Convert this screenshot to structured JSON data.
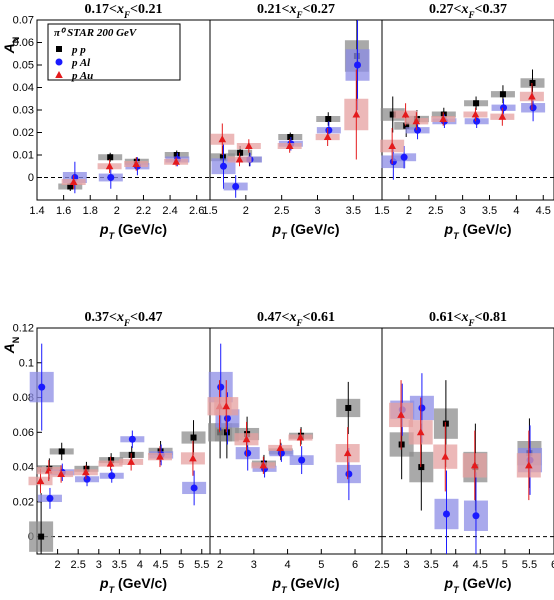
{
  "chart_data": {
    "type": "scatter",
    "figure_label": "π⁰ STAR 200 GeV",
    "ylabel": "A_N",
    "xlabel": "p_T (GeV/c)",
    "legend": [
      "p p",
      "p Al",
      "p Au"
    ],
    "series_colors": {
      "pp": "#000000",
      "pAl": "#1a1aff",
      "pAu": "#e41a1c"
    },
    "box_colors": {
      "pp": "#8c8c8c",
      "pAl": "#8c8ce6",
      "pAu": "#e6a0a0"
    },
    "rows": [
      {
        "ylim": [
          -0.01,
          0.07
        ],
        "yticks": [
          0,
          0.01,
          0.02,
          0.03,
          0.04,
          0.05,
          0.06,
          0.07
        ]
      },
      {
        "ylim": [
          -0.01,
          0.12
        ],
        "yticks": [
          0,
          0.02,
          0.04,
          0.06,
          0.08,
          0.1,
          0.12
        ]
      }
    ],
    "panels": [
      {
        "title": "0.17<x_F<0.21",
        "row": 0,
        "col": 0,
        "xlim": [
          1.4,
          2.7
        ],
        "xticks": [
          1.4,
          1.6,
          1.8,
          2,
          2.2,
          2.4,
          2.6
        ],
        "series": [
          {
            "name": "pp",
            "points": [
              [
                1.65,
                -0.004,
                0.002
              ],
              [
                1.95,
                0.009,
                0.002
              ],
              [
                2.15,
                0.007,
                0.002
              ],
              [
                2.45,
                0.01,
                0.002
              ]
            ]
          },
          {
            "name": "pAl",
            "points": [
              [
                1.68,
                0.0,
                0.007
              ],
              [
                1.95,
                0.0,
                0.005
              ],
              [
                2.15,
                0.005,
                0.004
              ],
              [
                2.45,
                0.008,
                0.003
              ]
            ]
          },
          {
            "name": "pAu",
            "points": [
              [
                1.68,
                -0.002,
                0.003
              ],
              [
                1.95,
                0.005,
                0.003
              ],
              [
                2.15,
                0.006,
                0.003
              ],
              [
                2.45,
                0.007,
                0.002
              ]
            ]
          }
        ]
      },
      {
        "title": "0.21<x_F<0.27",
        "row": 0,
        "col": 1,
        "xlim": [
          1.5,
          3.9
        ],
        "xticks": [
          1.5,
          2,
          2.5,
          3,
          3.5
        ],
        "series": [
          {
            "name": "pp",
            "points": [
              [
                1.68,
                0.009,
                0.005
              ],
              [
                1.92,
                0.011,
                0.003
              ],
              [
                2.05,
                0.008,
                0.003
              ],
              [
                2.62,
                0.018,
                0.002
              ],
              [
                3.15,
                0.026,
                0.003
              ],
              [
                3.55,
                0.054,
                0.02
              ]
            ]
          },
          {
            "name": "pAl",
            "points": [
              [
                1.68,
                0.005,
                0.01
              ],
              [
                1.85,
                -0.004,
                0.005
              ],
              [
                2.05,
                0.008,
                0.003
              ],
              [
                2.62,
                0.015,
                0.003
              ],
              [
                3.15,
                0.021,
                0.004
              ],
              [
                3.55,
                0.05,
                0.02
              ]
            ]
          },
          {
            "name": "pAu",
            "points": [
              [
                1.68,
                0.017,
                0.007
              ],
              [
                1.92,
                0.008,
                0.003
              ],
              [
                2.05,
                0.014,
                0.003
              ],
              [
                2.62,
                0.014,
                0.003
              ],
              [
                3.15,
                0.018,
                0.004
              ],
              [
                3.55,
                0.028,
                0.02
              ]
            ]
          }
        ]
      },
      {
        "title": "0.27<x_F<0.37",
        "row": 0,
        "col": 2,
        "xlim": [
          1.5,
          4.7
        ],
        "xticks": [
          1.5,
          2,
          2.5,
          3,
          3.5,
          4,
          4.5
        ],
        "series": [
          {
            "name": "pp",
            "points": [
              [
                1.7,
                0.028,
                0.008
              ],
              [
                1.95,
                0.023,
                0.005
              ],
              [
                2.15,
                0.026,
                0.004
              ],
              [
                2.65,
                0.028,
                0.003
              ],
              [
                3.25,
                0.033,
                0.003
              ],
              [
                3.75,
                0.037,
                0.004
              ],
              [
                4.3,
                0.042,
                0.006
              ]
            ]
          },
          {
            "name": "pAl",
            "points": [
              [
                1.7,
                0.007,
                0.008
              ],
              [
                1.9,
                0.009,
                0.005
              ],
              [
                2.15,
                0.021,
                0.004
              ],
              [
                2.65,
                0.025,
                0.003
              ],
              [
                3.25,
                0.025,
                0.003
              ],
              [
                3.75,
                0.031,
                0.004
              ],
              [
                4.3,
                0.031,
                0.006
              ]
            ]
          },
          {
            "name": "pAu",
            "points": [
              [
                1.7,
                0.014,
                0.008
              ],
              [
                1.95,
                0.028,
                0.005
              ],
              [
                2.15,
                0.025,
                0.004
              ],
              [
                2.65,
                0.026,
                0.003
              ],
              [
                3.25,
                0.028,
                0.003
              ],
              [
                3.75,
                0.027,
                0.004
              ],
              [
                4.3,
                0.036,
                0.006
              ]
            ]
          }
        ]
      },
      {
        "title": "0.37<x_F<0.47",
        "row": 1,
        "col": 0,
        "xlim": [
          1.5,
          5.7
        ],
        "xticks": [
          2,
          2.5,
          3,
          3.5,
          4,
          4.5,
          5,
          5.5
        ],
        "series": [
          {
            "name": "pp",
            "points": [
              [
                1.6,
                0.0,
                0.025
              ],
              [
                1.8,
                0.039,
                0.006
              ],
              [
                2.1,
                0.049,
                0.005
              ],
              [
                2.7,
                0.039,
                0.004
              ],
              [
                3.3,
                0.044,
                0.004
              ],
              [
                3.8,
                0.047,
                0.005
              ],
              [
                4.5,
                0.049,
                0.006
              ],
              [
                5.3,
                0.057,
                0.01
              ]
            ]
          },
          {
            "name": "pAl",
            "points": [
              [
                1.6,
                0.086,
                0.025
              ],
              [
                1.8,
                0.022,
                0.006
              ],
              [
                2.1,
                0.037,
                0.005
              ],
              [
                2.7,
                0.033,
                0.004
              ],
              [
                3.3,
                0.035,
                0.004
              ],
              [
                3.8,
                0.056,
                0.005
              ],
              [
                4.5,
                0.047,
                0.006
              ],
              [
                5.3,
                0.028,
                0.01
              ]
            ]
          },
          {
            "name": "pAu",
            "points": [
              [
                1.6,
                0.032,
                0.007
              ],
              [
                1.8,
                0.038,
                0.006
              ],
              [
                2.1,
                0.036,
                0.005
              ],
              [
                2.7,
                0.037,
                0.004
              ],
              [
                3.3,
                0.042,
                0.004
              ],
              [
                3.8,
                0.043,
                0.005
              ],
              [
                4.5,
                0.046,
                0.006
              ],
              [
                5.3,
                0.045,
                0.01
              ]
            ]
          }
        ]
      },
      {
        "title": "0.47<x_F<0.61",
        "row": 1,
        "col": 1,
        "xlim": [
          1.7,
          6.8
        ],
        "xticks": [
          2,
          3,
          4,
          5,
          6
        ],
        "series": [
          {
            "name": "pp",
            "points": [
              [
                2.0,
                0.06,
                0.015
              ],
              [
                2.2,
                0.06,
                0.015
              ],
              [
                2.8,
                0.059,
                0.01
              ],
              [
                3.3,
                0.042,
                0.005
              ],
              [
                3.8,
                0.049,
                0.005
              ],
              [
                4.4,
                0.058,
                0.005
              ],
              [
                5.8,
                0.074,
                0.015
              ]
            ]
          },
          {
            "name": "pAl",
            "points": [
              [
                2.0,
                0.086,
                0.025
              ],
              [
                2.2,
                0.068,
                0.015
              ],
              [
                2.8,
                0.048,
                0.01
              ],
              [
                3.3,
                0.039,
                0.005
              ],
              [
                3.8,
                0.048,
                0.005
              ],
              [
                4.4,
                0.044,
                0.008
              ],
              [
                5.8,
                0.036,
                0.015
              ]
            ]
          },
          {
            "name": "pAu",
            "points": [
              [
                2.0,
                0.075,
                0.015
              ],
              [
                2.2,
                0.075,
                0.015
              ],
              [
                2.8,
                0.056,
                0.01
              ],
              [
                3.3,
                0.041,
                0.005
              ],
              [
                3.8,
                0.051,
                0.005
              ],
              [
                4.4,
                0.057,
                0.005
              ],
              [
                5.8,
                0.048,
                0.015
              ]
            ]
          }
        ]
      },
      {
        "title": "0.61<x_F<0.81",
        "row": 1,
        "col": 2,
        "xlim": [
          2.5,
          6.0
        ],
        "xticks": [
          2.5,
          3,
          3.5,
          4,
          4.5,
          5,
          5.5,
          6
        ],
        "series": [
          {
            "name": "pp",
            "points": [
              [
                2.9,
                0.053,
                0.02
              ],
              [
                3.3,
                0.04,
                0.025
              ],
              [
                3.8,
                0.065,
                0.025
              ],
              [
                4.4,
                0.04,
                0.025
              ],
              [
                5.5,
                0.048,
                0.02
              ]
            ]
          },
          {
            "name": "pAl",
            "points": [
              [
                2.9,
                0.073,
                0.015
              ],
              [
                3.3,
                0.074,
                0.02
              ],
              [
                3.8,
                0.013,
                0.025
              ],
              [
                4.4,
                0.012,
                0.025
              ],
              [
                5.5,
                0.044,
                0.02
              ]
            ]
          },
          {
            "name": "pAu",
            "points": [
              [
                2.9,
                0.07,
                0.02
              ],
              [
                3.3,
                0.06,
                0.02
              ],
              [
                3.8,
                0.046,
                0.02
              ],
              [
                4.4,
                0.041,
                0.02
              ],
              [
                5.5,
                0.041,
                0.02
              ]
            ]
          }
        ]
      }
    ]
  }
}
